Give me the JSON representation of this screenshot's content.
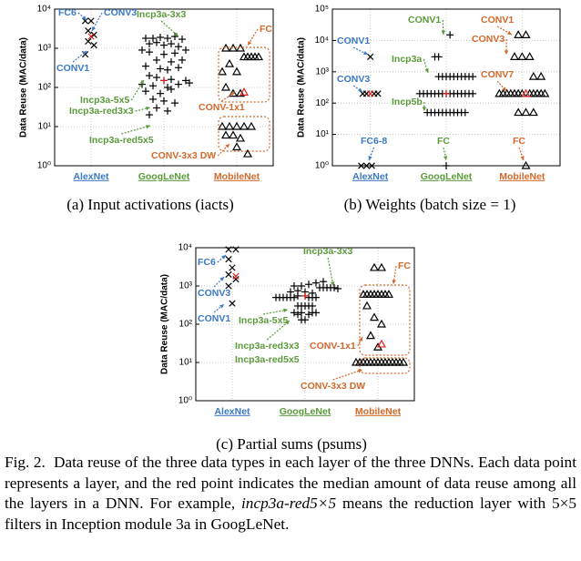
{
  "chart_data": [
    {
      "type": "scatter",
      "caption": "(a) Input activations (iacts)",
      "ylabel": "Data Reuse (MAC/data)",
      "log_y": true,
      "grid": true,
      "xlim": [
        0.5,
        3.5
      ],
      "xticks": [
        {
          "value": 1,
          "label": "AlexNet",
          "color": "#3b78c3"
        },
        {
          "value": 2,
          "label": "GoogLeNet",
          "color": "#5b9a3b"
        },
        {
          "value": 3,
          "label": "MobileNet",
          "color": "#d2692b"
        }
      ],
      "ylim": [
        1,
        10000
      ],
      "yticks": [
        {
          "value": 1,
          "label": "10⁰"
        },
        {
          "value": 10,
          "label": "10¹"
        },
        {
          "value": 100,
          "label": "10²"
        },
        {
          "value": 1000,
          "label": "10³"
        },
        {
          "value": 10000,
          "label": "10⁴"
        }
      ],
      "series": [
        {
          "marker": "x",
          "color": "#000000",
          "x": [
            0.92,
            1.0,
            0.96,
            1.04,
            0.96,
            1.04,
            0.92
          ],
          "values": [
            5000,
            5000,
            2800,
            2200,
            1500,
            1200,
            700
          ]
        },
        {
          "marker": "+",
          "color": "#000000",
          "x": [
            1.75,
            1.85,
            1.95,
            2.05,
            2.15,
            2.25,
            1.8,
            1.9,
            2.0,
            2.1,
            2.2,
            2.3,
            1.7,
            1.8,
            2.0,
            2.15,
            1.9,
            2.1,
            2.25,
            1.75,
            1.95,
            2.05,
            2.2,
            1.8,
            1.9,
            2.0,
            2.1,
            2.3,
            1.7,
            1.85,
            2.05,
            2.2,
            2.35,
            1.75,
            1.95,
            2.1,
            1.85,
            2.0,
            2.15,
            1.9,
            2.05,
            1.8
          ],
          "values": [
            1800,
            1800,
            1900,
            1800,
            2000,
            1700,
            1300,
            1400,
            1200,
            1300,
            1100,
            900,
            900,
            800,
            700,
            750,
            500,
            450,
            500,
            350,
            300,
            280,
            320,
            200,
            180,
            150,
            160,
            150,
            120,
            110,
            100,
            120,
            130,
            80,
            70,
            90,
            50,
            45,
            40,
            30,
            25,
            20
          ]
        },
        {
          "marker": "triangle",
          "color": "#000000",
          "x": [
            2.85,
            2.95,
            3.05,
            3.1,
            3.15,
            3.2,
            3.25,
            3.3,
            2.9,
            2.8,
            3.0,
            2.85,
            2.95,
            3.05,
            2.8,
            2.9,
            3.0,
            3.1,
            3.2,
            2.85,
            2.95,
            3.05,
            3.0,
            3.15
          ],
          "values": [
            1000,
            1000,
            1000,
            600,
            600,
            600,
            600,
            600,
            400,
            250,
            250,
            100,
            70,
            70,
            10,
            10,
            10,
            10,
            10,
            6,
            6,
            5,
            3,
            2
          ]
        },
        {
          "markers": [
            "x",
            "+",
            "triangle"
          ],
          "color": "#e02020",
          "x": [
            1.0,
            2.0,
            3.1
          ],
          "values": [
            2000,
            150,
            75
          ]
        }
      ],
      "annotations": [
        {
          "text": "FC6",
          "color": "#3b78c3"
        },
        {
          "text": "CONV3",
          "color": "#3b78c3"
        },
        {
          "text": "CONV1",
          "color": "#3b78c3"
        },
        {
          "text": "Incp3a-3x3",
          "color": "#5b9a3b"
        },
        {
          "text": "Incp3a-5x5",
          "color": "#5b9a3b"
        },
        {
          "text": "Incp3a-red3x3",
          "color": "#5b9a3b"
        },
        {
          "text": "Incp3a-red5x5",
          "color": "#5b9a3b"
        },
        {
          "text": "FC",
          "color": "#d2692b"
        },
        {
          "text": "CONV-1x1",
          "color": "#d2692b"
        },
        {
          "text": "CONV-3x3 DW",
          "color": "#d2692b"
        }
      ]
    },
    {
      "type": "scatter",
      "caption": "(b) Weights (batch size = 1)",
      "ylabel": "Data Reuse (MAC/data)",
      "log_y": true,
      "grid": true,
      "xlim": [
        0.5,
        3.5
      ],
      "xticks": [
        {
          "value": 1,
          "label": "AlexNet",
          "color": "#3b78c3"
        },
        {
          "value": 2,
          "label": "GoogLeNet",
          "color": "#5b9a3b"
        },
        {
          "value": 3,
          "label": "MobileNet",
          "color": "#d2692b"
        }
      ],
      "ylim": [
        1,
        100000
      ],
      "yticks": [
        {
          "value": 1,
          "label": "10⁰"
        },
        {
          "value": 10,
          "label": "10¹"
        },
        {
          "value": 100,
          "label": "10²"
        },
        {
          "value": 1000,
          "label": "10³"
        },
        {
          "value": 10000,
          "label": "10⁴"
        },
        {
          "value": 100000,
          "label": "10⁵"
        }
      ],
      "series": [
        {
          "marker": "x",
          "color": "#000000",
          "x": [
            1.0,
            0.9,
            0.95,
            1.05,
            1.1,
            0.88,
            0.95,
            1.02
          ],
          "values": [
            3000,
            200,
            200,
            200,
            200,
            1,
            1,
            1
          ]
        },
        {
          "marker": "+",
          "color": "#000000",
          "x": [
            2.05,
            1.85,
            1.9,
            1.9,
            1.95,
            2.0,
            2.05,
            2.1,
            2.15,
            2.2,
            2.25,
            2.3,
            2.35,
            1.65,
            1.7,
            1.75,
            1.8,
            1.85,
            1.9,
            1.95,
            2.0,
            2.05,
            2.1,
            2.15,
            2.2,
            2.25,
            2.3,
            2.35,
            1.75,
            1.8,
            1.85,
            1.9,
            1.95,
            2.0,
            2.05,
            2.1,
            2.15,
            2.2,
            2.25,
            2.0
          ],
          "values": [
            15000,
            3000,
            3000,
            700,
            700,
            700,
            700,
            700,
            700,
            700,
            700,
            700,
            700,
            200,
            200,
            200,
            200,
            200,
            200,
            200,
            200,
            200,
            200,
            200,
            200,
            200,
            200,
            200,
            50,
            50,
            50,
            50,
            50,
            50,
            50,
            50,
            50,
            50,
            50,
            1
          ]
        },
        {
          "marker": "triangle",
          "color": "#000000",
          "x": [
            2.95,
            3.05,
            2.9,
            3.0,
            3.1,
            3.15,
            3.25,
            2.7,
            2.75,
            2.8,
            2.85,
            2.9,
            2.95,
            3.0,
            3.1,
            3.15,
            3.2,
            3.25,
            3.3,
            2.95,
            3.05,
            3.15,
            3.05
          ],
          "values": [
            15000,
            15000,
            3000,
            3000,
            3000,
            700,
            700,
            200,
            200,
            200,
            200,
            200,
            200,
            200,
            200,
            200,
            200,
            200,
            200,
            50,
            50,
            50,
            1
          ]
        },
        {
          "markers": [
            "x",
            "+",
            "triangle"
          ],
          "color": "#e02020",
          "x": [
            1.0,
            2.0,
            3.05
          ],
          "values": [
            200,
            200,
            200
          ]
        }
      ],
      "annotations": [
        {
          "text": "CONV1",
          "color": "#3b78c3"
        },
        {
          "text": "CONV3",
          "color": "#3b78c3"
        },
        {
          "text": "FC6-8",
          "color": "#3b78c3"
        },
        {
          "text": "CONV1",
          "color": "#5b9a3b"
        },
        {
          "text": "Incp3a",
          "color": "#5b9a3b"
        },
        {
          "text": "Incp5b",
          "color": "#5b9a3b"
        },
        {
          "text": "FC",
          "color": "#5b9a3b"
        },
        {
          "text": "CONV1",
          "color": "#d2692b"
        },
        {
          "text": "CONV3",
          "color": "#d2692b"
        },
        {
          "text": "CONV7",
          "color": "#d2692b"
        },
        {
          "text": "FC",
          "color": "#d2692b"
        }
      ]
    },
    {
      "type": "scatter",
      "caption": "(c) Partial sums (psums)",
      "ylabel": "Data Reuse (MAC/data)",
      "log_y": true,
      "grid": true,
      "xlim": [
        0.5,
        3.5
      ],
      "xticks": [
        {
          "value": 1,
          "label": "AlexNet",
          "color": "#3b78c3"
        },
        {
          "value": 2,
          "label": "GoogLeNet",
          "color": "#5b9a3b"
        },
        {
          "value": 3,
          "label": "MobileNet",
          "color": "#d2692b"
        }
      ],
      "ylim": [
        1,
        10000
      ],
      "yticks": [
        {
          "value": 1,
          "label": "10⁰"
        },
        {
          "value": 10,
          "label": "10¹"
        },
        {
          "value": 100,
          "label": "10²"
        },
        {
          "value": 1000,
          "label": "10³"
        },
        {
          "value": 10000,
          "label": "10⁴"
        }
      ],
      "series": [
        {
          "marker": "x",
          "color": "#000000",
          "x": [
            0.95,
            1.05,
            0.95,
            1.0,
            0.95,
            1.05,
            0.95,
            1.0
          ],
          "values": [
            9000,
            9000,
            5000,
            3000,
            2000,
            1500,
            1000,
            350
          ]
        },
        {
          "marker": "+",
          "color": "#000000",
          "x": [
            2.2,
            2.25,
            2.3,
            2.35,
            2.4,
            2.45,
            1.85,
            1.95,
            2.05,
            2.15,
            2.25,
            1.8,
            1.9,
            2.0,
            2.1,
            1.6,
            1.65,
            1.7,
            1.75,
            1.8,
            1.85,
            1.9,
            2.0,
            2.05,
            2.1,
            2.15,
            1.9,
            1.95,
            2.0,
            2.05,
            2.1,
            1.85,
            1.9,
            1.95,
            2.05,
            2.1,
            2.15,
            1.95,
            2.0
          ],
          "values": [
            900,
            900,
            900,
            900,
            900,
            850,
            1000,
            1000,
            1100,
            1200,
            1300,
            700,
            750,
            700,
            650,
            500,
            500,
            500,
            500,
            500,
            500,
            550,
            550,
            500,
            500,
            500,
            300,
            300,
            300,
            300,
            300,
            200,
            180,
            200,
            180,
            200,
            200,
            130,
            130
          ]
        },
        {
          "marker": "triangle",
          "color": "#000000",
          "x": [
            2.95,
            3.05,
            2.8,
            2.85,
            2.9,
            2.95,
            3.0,
            3.05,
            3.1,
            3.15,
            2.85,
            2.95,
            3.05,
            2.9,
            3.0,
            2.7,
            2.75,
            2.8,
            2.85,
            2.9,
            2.95,
            3.0,
            3.05,
            3.1,
            3.15,
            3.2,
            3.25,
            3.3,
            3.35
          ],
          "values": [
            3000,
            3000,
            600,
            600,
            600,
            600,
            600,
            600,
            600,
            600,
            300,
            150,
            100,
            50,
            25,
            10,
            10,
            10,
            10,
            10,
            10,
            10,
            10,
            10,
            10,
            10,
            10,
            10,
            10
          ]
        },
        {
          "markers": [
            "x",
            "+",
            "triangle"
          ],
          "color": "#e02020",
          "x": [
            1.05,
            2.0,
            3.05
          ],
          "values": [
            1800,
            550,
            30
          ]
        }
      ],
      "annotations": [
        {
          "text": "FC6",
          "color": "#3b78c3"
        },
        {
          "text": "CONV3",
          "color": "#3b78c3"
        },
        {
          "text": "CONV1",
          "color": "#3b78c3"
        },
        {
          "text": "Incp3a-3x3",
          "color": "#5b9a3b"
        },
        {
          "text": "Incp3a-5x5",
          "color": "#5b9a3b"
        },
        {
          "text": "Incp3a-red3x3",
          "color": "#5b9a3b"
        },
        {
          "text": "Incp3a-red5x5",
          "color": "#5b9a3b"
        },
        {
          "text": "FC",
          "color": "#d2692b"
        },
        {
          "text": "CONV-1x1",
          "color": "#d2692b"
        },
        {
          "text": "CONV-3x3 DW",
          "color": "#d2692b"
        }
      ]
    }
  ],
  "caption": {
    "label": "Fig. 2.",
    "text_before": "Data reuse of the three data types in each layer of the three DNNs. Each data point represents a layer, and the red point indicates the median amount of data reuse among all the layers in a DNN. For example, ",
    "emphasis": "incp3a-red5×5",
    "text_after": " means the reduction layer with 5×5 filters in Inception module 3a in GoogLeNet."
  }
}
